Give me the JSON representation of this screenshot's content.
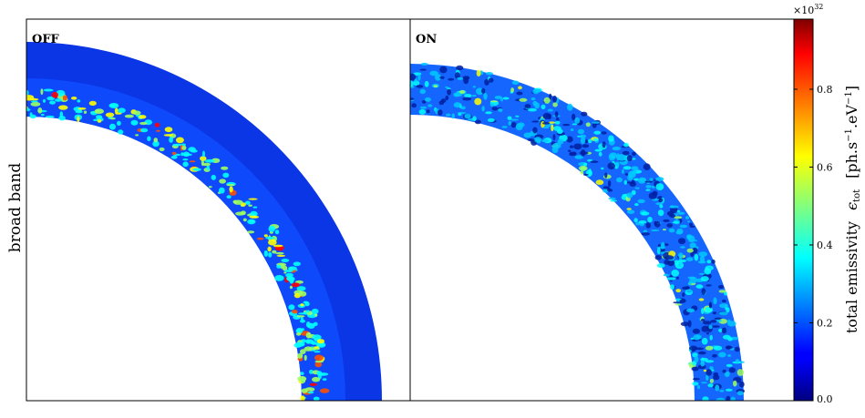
{
  "chart_data": {
    "type": "heatmap",
    "row_label": "broad band",
    "panels": [
      {
        "label": "OFF",
        "description_values": "narrow unstable band of high emissivity near inner edge of shell"
      },
      {
        "label": "ON",
        "description_values": "turbulent moderately high emissivity filling shell"
      }
    ],
    "colorbar": {
      "label_main": "total emissivity",
      "label_symbol": "ϵ",
      "label_symbol_sub": "tot",
      "label_units_a": "[ph.s",
      "label_units_sup1": "−1",
      "label_units_b": ".eV",
      "label_units_sup2": "−1",
      "label_units_c": "]",
      "multiplier_base": "×10",
      "multiplier_exp": "32",
      "ticks": [
        "0.0",
        "0.2",
        "0.4",
        "0.6",
        "0.8"
      ],
      "tick_values": [
        0.0,
        0.2,
        0.4,
        0.6,
        0.8
      ],
      "range": [
        0.0,
        0.98
      ],
      "colormap": "jet"
    }
  }
}
